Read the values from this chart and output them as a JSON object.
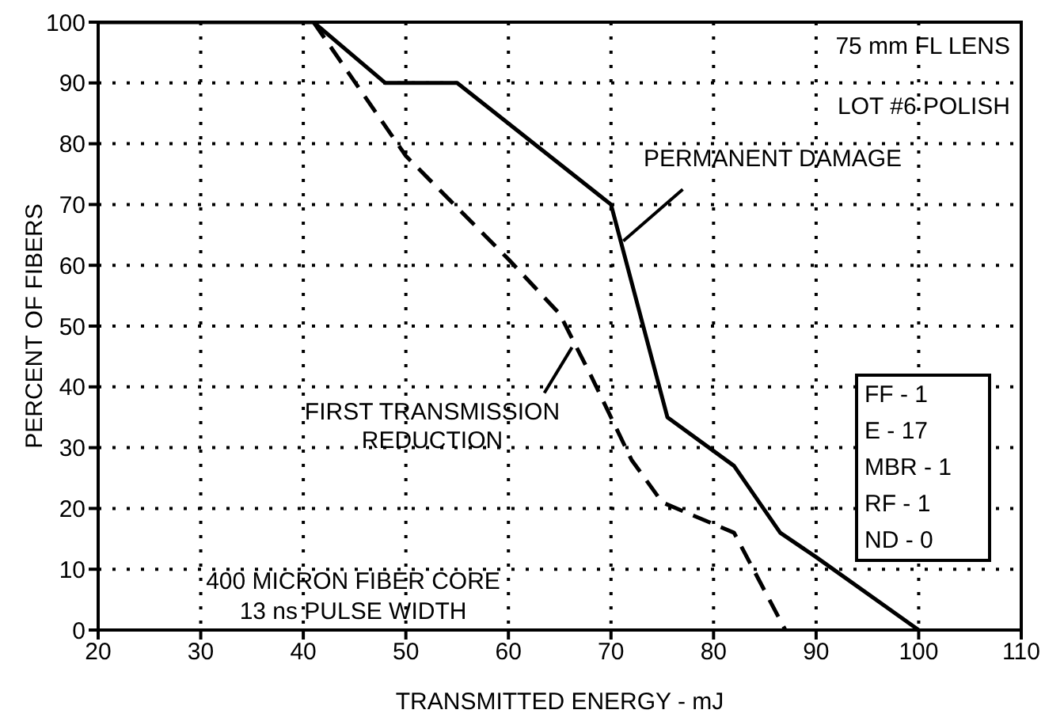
{
  "chart_data": {
    "type": "line",
    "xlabel": "TRANSMITTED ENERGY - mJ",
    "ylabel": "PERCENT OF FIBERS",
    "xlim": [
      20,
      110
    ],
    "xticks": [
      20,
      30,
      40,
      50,
      60,
      70,
      80,
      90,
      100,
      110
    ],
    "ylim": [
      0,
      100
    ],
    "yticks": [
      0,
      10,
      20,
      30,
      40,
      50,
      60,
      70,
      80,
      90,
      100
    ],
    "grid": true,
    "marker": "none",
    "series": [
      {
        "name": "PERMANENT DAMAGE",
        "color": "#000000",
        "line_style": "solid",
        "x": [
          20,
          41,
          48,
          55,
          70,
          75.5,
          82,
          86.5,
          90,
          100
        ],
        "values": [
          100,
          100,
          90,
          90,
          70,
          35,
          27,
          16,
          12,
          0
        ]
      },
      {
        "name": "FIRST TRANSMISSION REDUCTION",
        "color": "#000000",
        "line_style": "dashed",
        "x": [
          41,
          50,
          60,
          65,
          68,
          72,
          75,
          82,
          87
        ],
        "values": [
          100,
          78,
          61,
          52,
          42,
          28,
          21,
          16,
          0
        ]
      }
    ],
    "annotations": [
      "75 mm FL LENS",
      "LOT #6 POLISH",
      "400 MICRON FIBER CORE\n13 ns PULSE WIDTH",
      "FF - 1\nE - 17\nMBR - 1\nRF - 1\nND - 0"
    ]
  }
}
